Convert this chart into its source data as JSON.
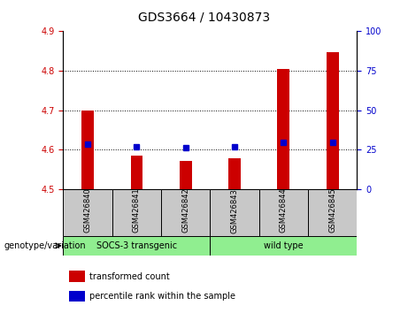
{
  "title": "GDS3664 / 10430873",
  "samples": [
    "GSM426840",
    "GSM426841",
    "GSM426842",
    "GSM426843",
    "GSM426844",
    "GSM426845"
  ],
  "red_values": [
    4.7,
    4.585,
    4.572,
    4.578,
    4.805,
    4.848
  ],
  "blue_values": [
    4.615,
    4.607,
    4.605,
    4.607,
    4.618,
    4.618
  ],
  "ylim_left": [
    4.5,
    4.9
  ],
  "ylim_right": [
    0,
    100
  ],
  "yticks_left": [
    4.5,
    4.6,
    4.7,
    4.8,
    4.9
  ],
  "yticks_right": [
    0,
    25,
    50,
    75,
    100
  ],
  "bar_color": "#CC0000",
  "dot_color": "#0000CC",
  "bar_width": 0.25,
  "baseline": 4.5,
  "grid_color": "black",
  "tick_label_color_left": "#CC0000",
  "tick_label_color_right": "#0000CC",
  "legend_items": [
    {
      "label": "transformed count",
      "color": "#CC0000"
    },
    {
      "label": "percentile rank within the sample",
      "color": "#0000CC"
    }
  ],
  "genotype_label": "genotype/variation",
  "socs_label": "SOCS-3 transgenic",
  "wt_label": "wild type",
  "group_bg_color": "#C8C8C8",
  "green_color": "#90EE90",
  "title_fontsize": 10,
  "tick_fontsize": 7,
  "sample_fontsize": 6,
  "group_fontsize": 7,
  "legend_fontsize": 7,
  "genotype_fontsize": 7
}
